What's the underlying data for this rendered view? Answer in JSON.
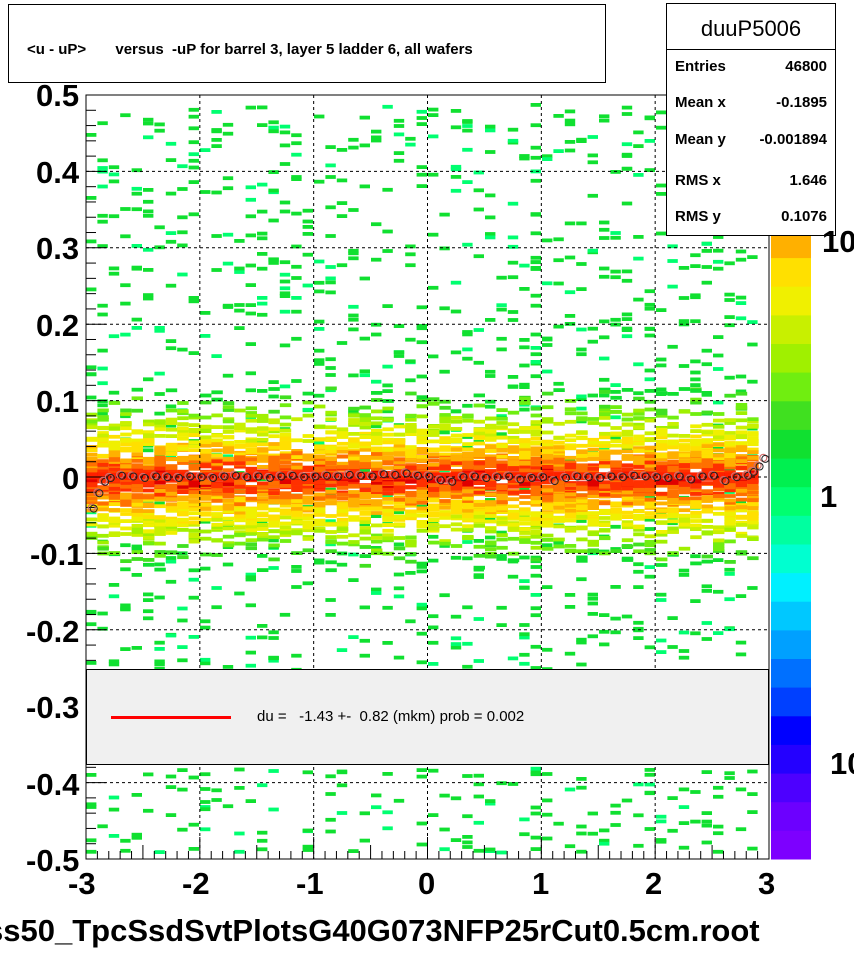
{
  "title": "<u - uP>       versus  -uP for barrel 3, layer 5 ladder 6, all wafers",
  "stats": {
    "name": "duuP5006",
    "rows": [
      {
        "label": "Entries",
        "value": "46800"
      },
      {
        "label": "Mean x",
        "value": "-0.1895"
      },
      {
        "label": "Mean y",
        "value": "-0.001894"
      },
      {
        "label": "RMS x",
        "value": "1.646"
      },
      {
        "label": "RMS y",
        "value": "0.1076"
      }
    ]
  },
  "legend": {
    "text": "du =   -1.43 +-  0.82 (mkm) prob = 0.002",
    "line_color": "#ff0000"
  },
  "footer": "ss50_TpcSsdSvtPlotsG40G073NFP25rCut0.5cm.root",
  "chart_data": {
    "type": "heatmap",
    "title": "<u - uP>       versus  -uP for barrel 3, layer 5 ladder 6, all wafers",
    "xlim": [
      -3,
      3
    ],
    "ylim": [
      -0.5,
      0.5
    ],
    "x_ticks": [
      "-3",
      "-2",
      "-1",
      "0",
      "1",
      "2",
      "3"
    ],
    "y_ticks": [
      "-0.5",
      "-0.4",
      "-0.3",
      "-0.2",
      "-0.1",
      "0",
      "0.1",
      "0.2",
      "0.3",
      "0.4",
      "0.5"
    ],
    "z_scale": "log",
    "z_tick_labels": [
      "10",
      "1",
      "10"
    ],
    "grid": true,
    "band_center_y": 0.0,
    "profile_points": {
      "x": [
        -2.95,
        -2.9,
        -2.85,
        -2.8,
        -2.7,
        -2.6,
        -2.5,
        -2.4,
        -2.3,
        -2.2,
        -2.1,
        -2.0,
        -1.9,
        -1.8,
        -1.7,
        -1.6,
        -1.5,
        -1.4,
        -1.3,
        -1.2,
        -1.1,
        -1.0,
        -0.9,
        -0.8,
        -0.7,
        -0.6,
        -0.5,
        -0.4,
        -0.3,
        -0.2,
        -0.1,
        0.0,
        0.1,
        0.2,
        0.3,
        0.4,
        0.5,
        0.6,
        0.7,
        0.8,
        0.9,
        1.0,
        1.1,
        1.2,
        1.3,
        1.4,
        1.5,
        1.6,
        1.7,
        1.8,
        1.9,
        2.0,
        2.1,
        2.2,
        2.3,
        2.4,
        2.5,
        2.6,
        2.7,
        2.8,
        2.85,
        2.9,
        2.95
      ],
      "y": [
        -0.04,
        -0.02,
        -0.005,
        0.0,
        0.003,
        0.002,
        0.0,
        0.002,
        0.001,
        0.0,
        0.002,
        0.001,
        0.0,
        0.002,
        0.003,
        0.001,
        0.002,
        0.0,
        0.002,
        0.003,
        0.001,
        0.002,
        0.003,
        0.002,
        0.004,
        0.003,
        0.002,
        0.005,
        0.004,
        0.006,
        0.003,
        0.002,
        -0.003,
        -0.005,
        0.001,
        0.002,
        0.0,
        0.001,
        0.002,
        -0.002,
        0.0,
        0.001,
        -0.004,
        0.0,
        0.002,
        0.001,
        0.0,
        0.002,
        0.001,
        0.003,
        0.002,
        0.001,
        0.0,
        0.002,
        -0.002,
        0.002,
        0.003,
        -0.004,
        0.001,
        0.003,
        0.008,
        0.015,
        0.025
      ]
    }
  }
}
